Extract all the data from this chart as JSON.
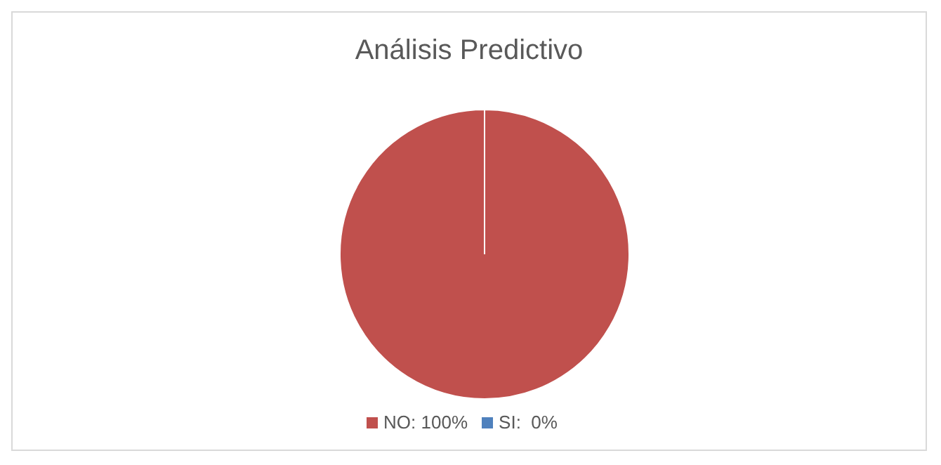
{
  "chart_data": {
    "type": "pie",
    "title": "Análisis Predictivo",
    "categories": [
      "SI:  0%",
      "NO: 100%"
    ],
    "values": [
      0,
      100
    ],
    "colors": [
      "#4f81bd",
      "#c0504d"
    ],
    "legend": "bottom"
  }
}
